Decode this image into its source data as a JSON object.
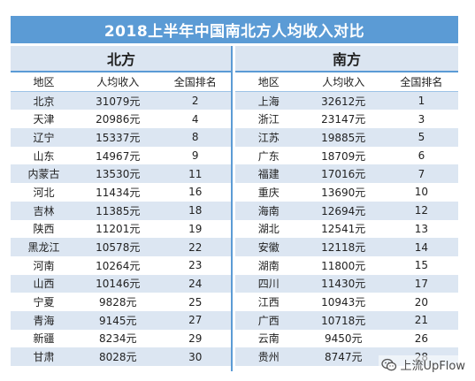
{
  "title": "2018上半年中国南北方人均收入对比",
  "north": {
    "label": "北方",
    "headers": [
      "地区",
      "人均收入",
      "全国排名"
    ],
    "rows": [
      {
        "region": "北京",
        "income": "31079元",
        "rank": "2"
      },
      {
        "region": "天津",
        "income": "20986元",
        "rank": "4"
      },
      {
        "region": "辽宁",
        "income": "15337元",
        "rank": "8"
      },
      {
        "region": "山东",
        "income": "14967元",
        "rank": "9"
      },
      {
        "region": "内蒙古",
        "income": "13530元",
        "rank": "11"
      },
      {
        "region": "河北",
        "income": "11434元",
        "rank": "16"
      },
      {
        "region": "吉林",
        "income": "11385元",
        "rank": "18"
      },
      {
        "region": "陕西",
        "income": "11201元",
        "rank": "19"
      },
      {
        "region": "黑龙江",
        "income": "10578元",
        "rank": "22"
      },
      {
        "region": "河南",
        "income": "10264元",
        "rank": "23"
      },
      {
        "region": "山西",
        "income": "10146元",
        "rank": "24"
      },
      {
        "region": "宁夏",
        "income": "9828元",
        "rank": "25"
      },
      {
        "region": "青海",
        "income": "9145元",
        "rank": "27"
      },
      {
        "region": "新疆",
        "income": "8234元",
        "rank": "29"
      },
      {
        "region": "甘肃",
        "income": "8028元",
        "rank": "30"
      }
    ]
  },
  "south": {
    "label": "南方",
    "headers": [
      "地区",
      "人均收入",
      "全国排名"
    ],
    "rows": [
      {
        "region": "上海",
        "income": "32612元",
        "rank": "1"
      },
      {
        "region": "浙江",
        "income": "23147元",
        "rank": "3"
      },
      {
        "region": "江苏",
        "income": "19885元",
        "rank": "5"
      },
      {
        "region": "广东",
        "income": "18709元",
        "rank": "6"
      },
      {
        "region": "福建",
        "income": "17016元",
        "rank": "7"
      },
      {
        "region": "重庆",
        "income": "13690元",
        "rank": "10"
      },
      {
        "region": "海南",
        "income": "12694元",
        "rank": "12"
      },
      {
        "region": "湖北",
        "income": "12541元",
        "rank": "13"
      },
      {
        "region": "安徽",
        "income": "12118元",
        "rank": "14"
      },
      {
        "region": "湖南",
        "income": "11800元",
        "rank": "15"
      },
      {
        "region": "四川",
        "income": "11430元",
        "rank": "17"
      },
      {
        "region": "江西",
        "income": "10943元",
        "rank": "20"
      },
      {
        "region": "广西",
        "income": "10718元",
        "rank": "21"
      },
      {
        "region": "云南",
        "income": "9450元",
        "rank": "26"
      },
      {
        "region": "贵州",
        "income": "8747元",
        "rank": "28"
      }
    ]
  },
  "watermark": {
    "text": "上流UpFlow",
    "icon": "wechat-logo-icon"
  },
  "colors": {
    "title_bg": "#5b9bd5",
    "stripe": "#dce6f2",
    "region_header_bg": "#dbe5f1"
  }
}
